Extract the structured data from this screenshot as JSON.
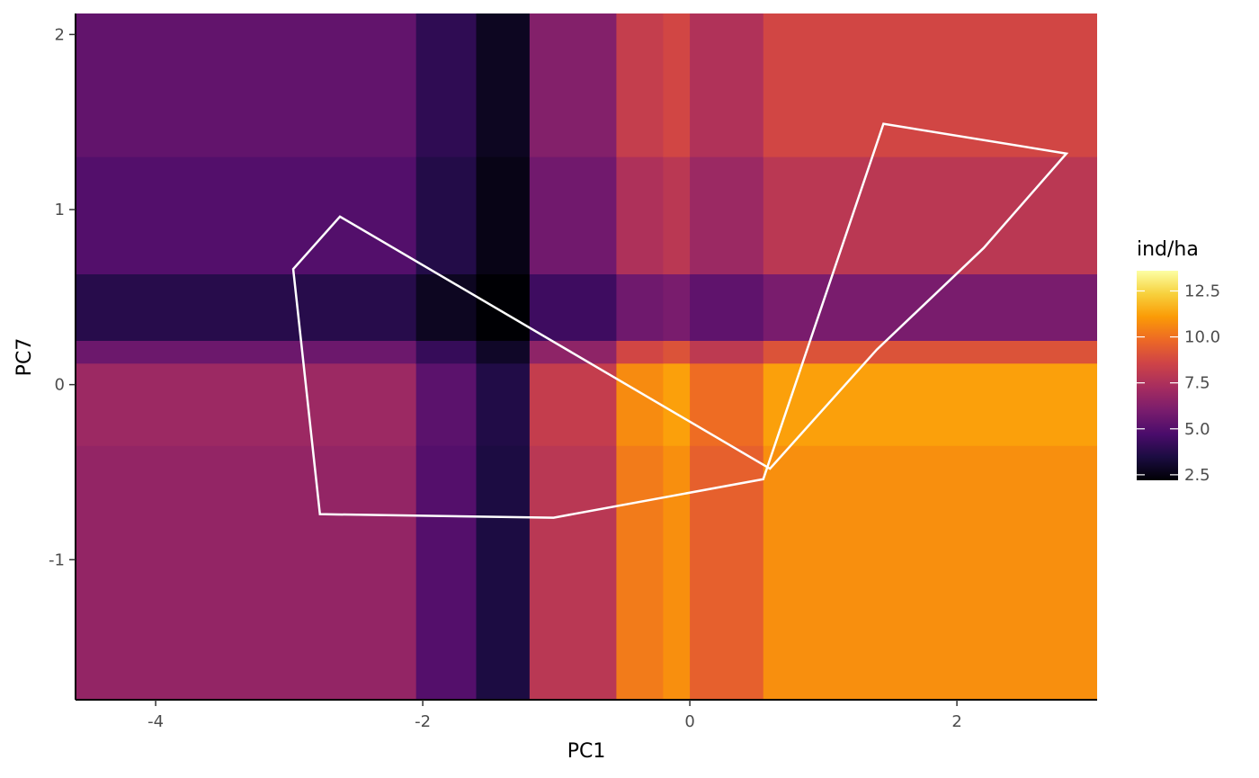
{
  "chart_data": {
    "type": "heatmap",
    "xlabel": "PC1",
    "ylabel": "PC7",
    "xlim": [
      -4.6,
      3.05
    ],
    "ylim": [
      -1.8,
      2.12
    ],
    "x_ticks": [
      {
        "value": -4,
        "label": "-4"
      },
      {
        "value": -2,
        "label": "-2"
      },
      {
        "value": 0,
        "label": "0"
      },
      {
        "value": 2,
        "label": "2"
      }
    ],
    "y_ticks": [
      {
        "value": -1,
        "label": "-1"
      },
      {
        "value": 0,
        "label": "0"
      },
      {
        "value": 1,
        "label": "1"
      },
      {
        "value": 2,
        "label": "2"
      }
    ],
    "grid": false,
    "legend": {
      "title": "ind/ha",
      "placement": "right",
      "range": [
        2.2,
        13.6
      ],
      "ticks": [
        {
          "value": 2.5,
          "label": "2.5"
        },
        {
          "value": 5.0,
          "label": "5.0"
        },
        {
          "value": 7.5,
          "label": "7.5"
        },
        {
          "value": 10.0,
          "label": "10.0"
        },
        {
          "value": 12.5,
          "label": "12.5"
        }
      ]
    },
    "colorscale": [
      "#000004",
      "#1b0c41",
      "#4a0c6b",
      "#781c6d",
      "#a52c60",
      "#cf4446",
      "#ed6925",
      "#fb9b06",
      "#f7d13d",
      "#fcffa4"
    ],
    "x_bands": [
      {
        "x0": -4.6,
        "x1": -2.05,
        "f": 5.4
      },
      {
        "x0": -2.05,
        "x1": -1.6,
        "f": 4.0
      },
      {
        "x0": -1.6,
        "x1": -1.2,
        "f": 2.8
      },
      {
        "x0": -1.2,
        "x1": -0.55,
        "f": 6.3
      },
      {
        "x0": -0.55,
        "x1": -0.2,
        "f": 8.2
      },
      {
        "x0": -0.2,
        "x1": 0.0,
        "f": 8.6
      },
      {
        "x0": 0.0,
        "x1": 0.55,
        "f": 7.6
      },
      {
        "x0": 0.55,
        "x1": 3.05,
        "f": 8.6
      }
    ],
    "y_bands": [
      {
        "y0": 1.3,
        "y1": 2.12,
        "g": 1.0
      },
      {
        "y0": 0.63,
        "y1": 1.3,
        "g": 0.92
      },
      {
        "y0": 0.25,
        "y1": 0.63,
        "g": 0.7
      },
      {
        "y0": 0.12,
        "y1": 0.25,
        "g": 1.05
      },
      {
        "y0": -0.35,
        "y1": 0.12,
        "g": 1.3
      },
      {
        "y0": -1.8,
        "y1": -0.35,
        "g": 1.25
      }
    ],
    "hull": {
      "x": [
        -2.62,
        -2.97,
        -2.77,
        -1.02,
        0.55,
        1.45,
        2.82,
        2.2,
        1.4,
        0.6
      ],
      "y": [
        0.96,
        0.66,
        -0.74,
        -0.76,
        -0.54,
        1.49,
        1.32,
        0.78,
        0.2,
        -0.48
      ]
    }
  }
}
